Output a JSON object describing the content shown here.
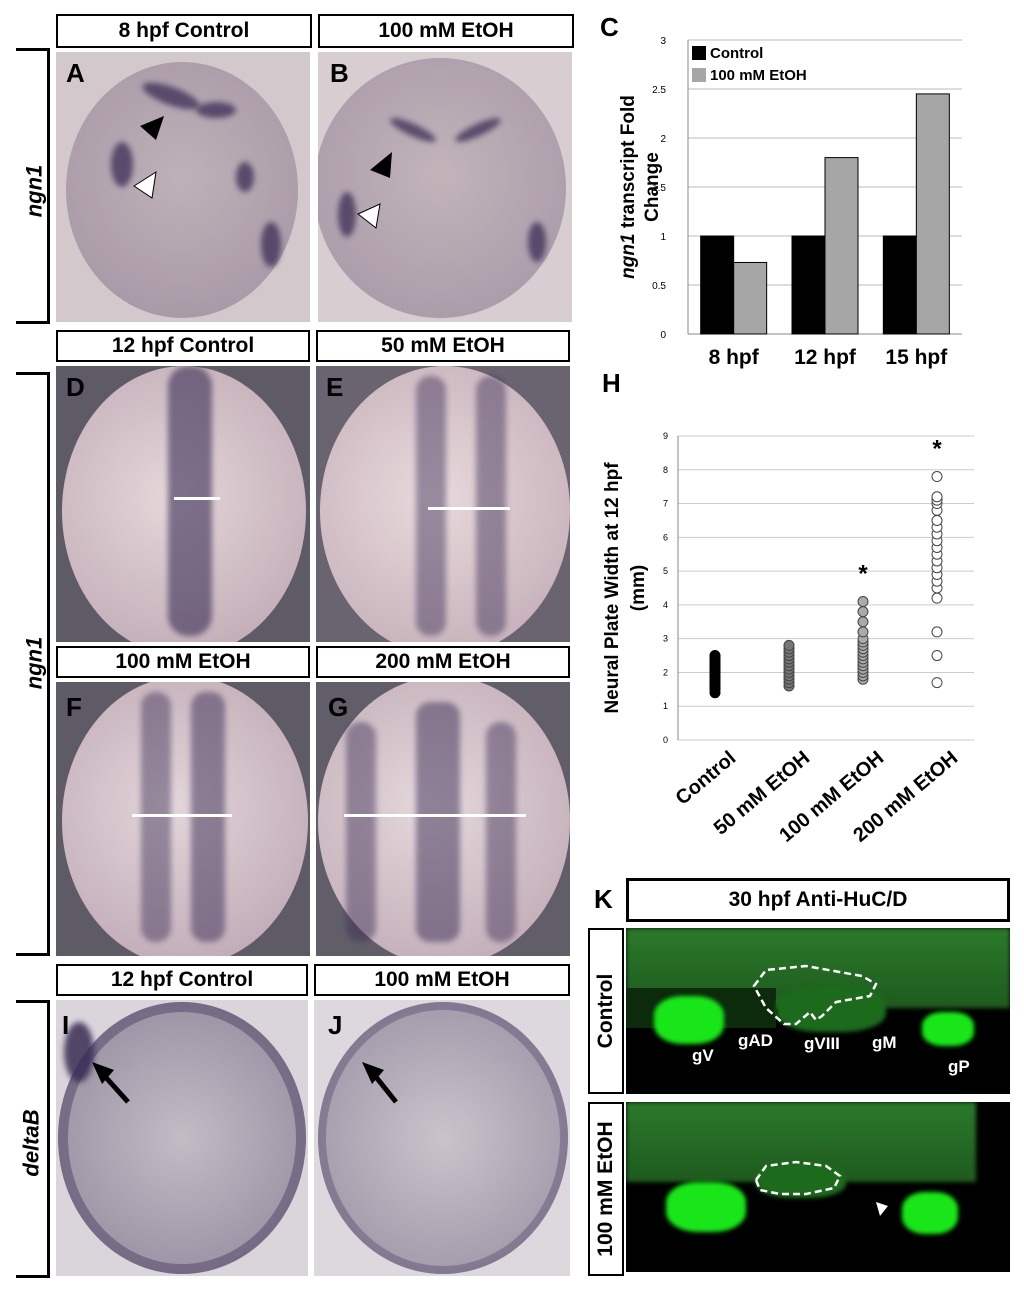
{
  "headers": {
    "a": "8 hpf Control",
    "b": "100 mM EtOH",
    "d": "12 hpf Control",
    "e": "50 mM EtOH",
    "f": "100 mM EtOH",
    "g": "200 mM EtOH",
    "i": "12 hpf Control",
    "j": "100 mM EtOH",
    "k": "30 hpf Anti-HuC/D"
  },
  "side_labels": {
    "top": "ngn1",
    "middle": "ngn1",
    "bottom": "deltaB"
  },
  "panel_letters": [
    "A",
    "B",
    "C",
    "D",
    "E",
    "F",
    "G",
    "H",
    "I",
    "J",
    "K"
  ],
  "fluor": {
    "row_labels": [
      "Control",
      "100 mM EtOH"
    ],
    "ganglia": [
      "gV",
      "gAD",
      "gVIII",
      "gM",
      "gP"
    ]
  },
  "colors": {
    "control_bar": "#000000",
    "etoh_bar": "#a6a6a6",
    "embryo": "#b3a4b6",
    "stain": "#3a2d55",
    "fluor": "#1aff1a"
  },
  "chart_data": [
    {
      "type": "bar",
      "categories": [
        "8 hpf",
        "12 hpf",
        "15 hpf"
      ],
      "series": [
        {
          "name": "Control",
          "values": [
            1,
            1,
            1
          ]
        },
        {
          "name": "100 mM EtOH",
          "values": [
            0.73,
            1.8,
            2.45
          ]
        }
      ],
      "ylabel_italic": "ngn1",
      "ylabel": "transcript Fold Change",
      "ylim": [
        0,
        3
      ],
      "yticks": [
        0,
        0.5,
        1,
        1.5,
        2,
        2.5,
        3
      ],
      "ytick_labels": [
        "0",
        "0.5",
        "1",
        "1.5",
        "2",
        "2.5",
        "3"
      ],
      "grid": true,
      "legend": "top-left"
    },
    {
      "type": "scatter",
      "categories": [
        "Control",
        "50 mM EtOH",
        "100 mM EtOH",
        "200 mM EtOH"
      ],
      "ylabel": "Neural Plate Width at 12 hpf (mm)",
      "ylim": [
        0,
        9
      ],
      "yticks": [
        0,
        1,
        2,
        3,
        4,
        5,
        6,
        7,
        8,
        9
      ],
      "grid": true,
      "significance": [
        "",
        "",
        "*",
        "*"
      ],
      "points": [
        [
          1.4,
          1.5,
          1.55,
          1.6,
          1.65,
          1.7,
          1.75,
          1.8,
          1.85,
          1.9,
          1.95,
          2.0,
          2.05,
          2.1,
          2.15,
          2.2,
          2.25,
          2.3,
          2.35,
          2.4,
          2.45,
          2.5
        ],
        [
          1.6,
          1.7,
          1.8,
          1.9,
          2.0,
          2.1,
          2.2,
          2.3,
          2.4,
          2.5,
          2.6,
          2.7,
          2.8
        ],
        [
          1.8,
          1.9,
          2.0,
          2.1,
          2.2,
          2.3,
          2.4,
          2.5,
          2.6,
          2.7,
          2.8,
          2.9,
          3.0,
          3.2,
          3.5,
          3.8,
          4.1
        ],
        [
          1.7,
          2.5,
          3.2,
          4.2,
          4.5,
          4.7,
          4.9,
          5.1,
          5.3,
          5.5,
          5.7,
          5.9,
          6.1,
          6.3,
          6.5,
          6.8,
          7.0,
          7.1,
          7.2,
          7.8
        ]
      ]
    }
  ]
}
